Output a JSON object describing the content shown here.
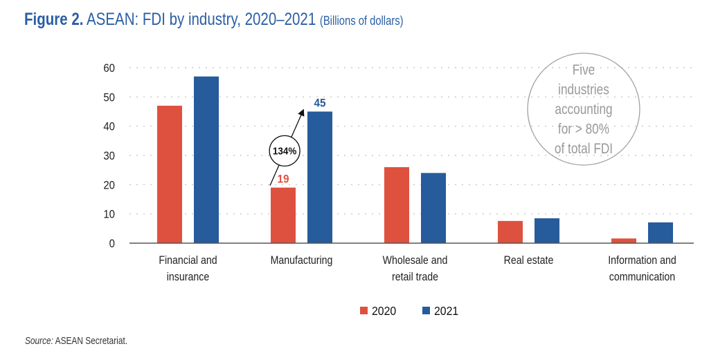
{
  "title": {
    "figure": "Figure 2.",
    "main": "ASEAN: FDI by industry, 2020–2021",
    "units": "(Billions of dollars)"
  },
  "colors": {
    "series_2020": "#df513f",
    "series_2021": "#265b9c",
    "title": "#2a5ea4",
    "annotation": "#999999"
  },
  "chart_data": {
    "type": "bar",
    "title": "ASEAN: FDI by industry, 2020–2021 (Billions of dollars)",
    "xlabel": "",
    "ylabel": "Billions of dollars",
    "ylim": [
      0,
      60
    ],
    "yticks": [
      0,
      10,
      20,
      30,
      40,
      50,
      60
    ],
    "grid": true,
    "legend_position": "bottom-center",
    "categories": [
      [
        "Financial and",
        "insurance"
      ],
      [
        "Manufacturing"
      ],
      [
        "Wholesale and",
        "retail trade"
      ],
      [
        "Real estate"
      ],
      [
        "Information and",
        "communication"
      ]
    ],
    "series": [
      {
        "name": "2020",
        "color": "#df513f",
        "values": [
          47,
          19,
          26,
          7.6,
          1.6
        ]
      },
      {
        "name": "2021",
        "color": "#265b9c",
        "values": [
          57,
          45,
          24,
          8.5,
          7.1
        ]
      }
    ],
    "annotations": {
      "data_labels": [
        {
          "category_index": 1,
          "series": "2020",
          "text": "19"
        },
        {
          "category_index": 1,
          "series": "2021",
          "text": "45"
        }
      ],
      "growth": {
        "category_index": 1,
        "text": "134%"
      },
      "note_lines": [
        "Five",
        "industries",
        "accounting",
        "for > 80%",
        "of total FDI"
      ]
    }
  },
  "source": {
    "label": "Source:",
    "text": "ASEAN Secretariat."
  }
}
